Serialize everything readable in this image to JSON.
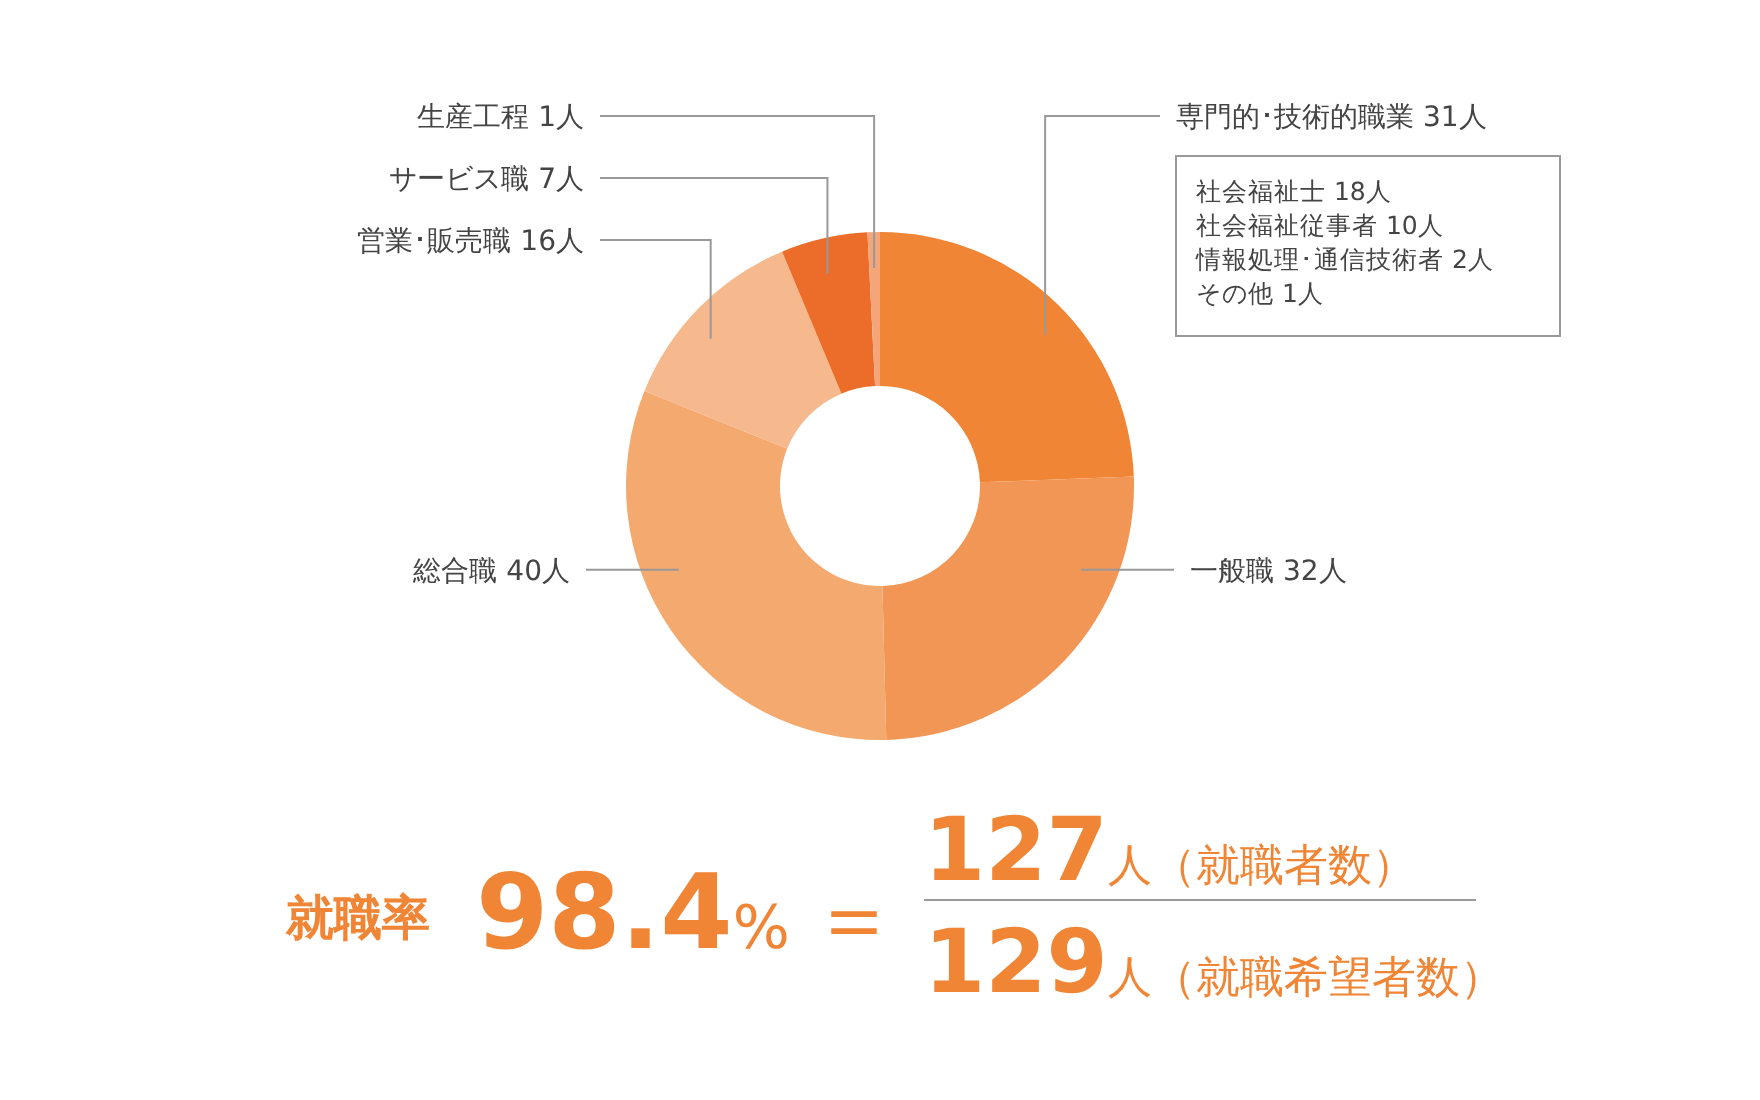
{
  "chart_data": {
    "type": "donut",
    "categories": [
      "専門的･技術的職業",
      "一般職",
      "総合職",
      "営業･販売職",
      "サービス職",
      "生産工程"
    ],
    "values": [
      31,
      32,
      40,
      16,
      7,
      1
    ],
    "value_labels": [
      "31人",
      "32人",
      "40人",
      "16人",
      "7人",
      "1人"
    ],
    "colors": [
      "#ef8535",
      "#f19654",
      "#f4a96f",
      "#f6b98e",
      "#ec6d2a",
      "#f4a67a"
    ],
    "annotations": [
      "社会福祉士 18人",
      "社会福祉従事者 10人",
      "情報処理･通信技術者 2人",
      "その他 1人",
      "就職率",
      "98.4%",
      "＝",
      "127人（就職者数）",
      "129人（就職希望者数）"
    ]
  }
}
